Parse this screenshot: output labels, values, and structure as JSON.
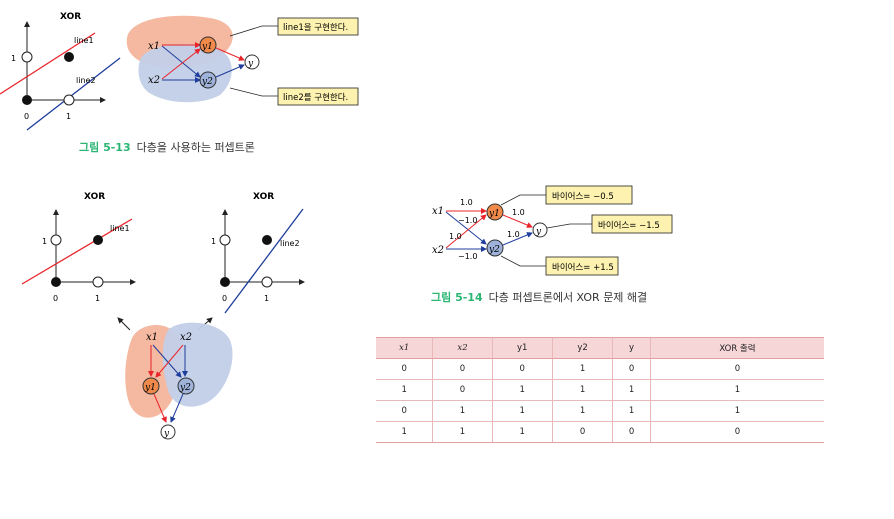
{
  "fig13": {
    "plot_title": "XOR",
    "tick_x0": "0",
    "tick_x1": "1",
    "tick_y1": "1",
    "line1_label": "line1",
    "line2_label": "line2",
    "node_x1": "x1",
    "node_x2": "x2",
    "node_y1": "y1",
    "node_y2": "y2",
    "node_y": "y",
    "callout1": "line1을 구현한다.",
    "callout2": "line2를 구현한다.",
    "caption_num": "그림 5-13",
    "caption_text": "다층을 사용하는 퍼셉트론"
  },
  "fig_left": {
    "plot1_title": "XOR",
    "plot2_title": "XOR",
    "line1_label": "line1",
    "line2_label": "line2",
    "tick_0": "0",
    "tick_1": "1",
    "tick_y1": "1",
    "node_x1": "x1",
    "node_x2": "x2",
    "node_y1": "y1",
    "node_y2": "y2",
    "node_y": "y"
  },
  "fig14": {
    "node_x1": "x1",
    "node_x2": "x2",
    "node_y1": "y1",
    "node_y2": "y2",
    "node_y": "y",
    "w_x1_y1": "1.0",
    "w_x1_y2": "−1.0",
    "w_x2_y1": "1.0",
    "w_x2_y2": "−1.0",
    "w_y1_y": "1.0",
    "w_y2_y": "1.0",
    "bias_y1": "바이어스= −0.5",
    "bias_y": "바이어스= −1.5",
    "bias_y2": "바이어스= +1.5",
    "caption_num": "그림 5-14",
    "caption_text": "다층 퍼셉트론에서 XOR 문제 해결"
  },
  "table": {
    "headers": [
      "x1",
      "x2",
      "y1",
      "y2",
      "y",
      "XOR 출력"
    ],
    "rows": [
      [
        "0",
        "0",
        "0",
        "1",
        "0",
        "0"
      ],
      [
        "1",
        "0",
        "1",
        "1",
        "1",
        "1"
      ],
      [
        "0",
        "1",
        "1",
        "1",
        "1",
        "1"
      ],
      [
        "1",
        "1",
        "1",
        "0",
        "0",
        "0"
      ]
    ]
  },
  "colors": {
    "red_line": "#e8242a",
    "blue_line": "#1f3d9c",
    "orange_region": "#f4b9a0",
    "blue_region": "#c2cfe8",
    "node_orange": "#f08a4b",
    "node_blue": "#9fb3da",
    "callout_fill": "#fdf2b0",
    "green_caption": "#2bb673",
    "table_header": "#f6d6d6"
  }
}
